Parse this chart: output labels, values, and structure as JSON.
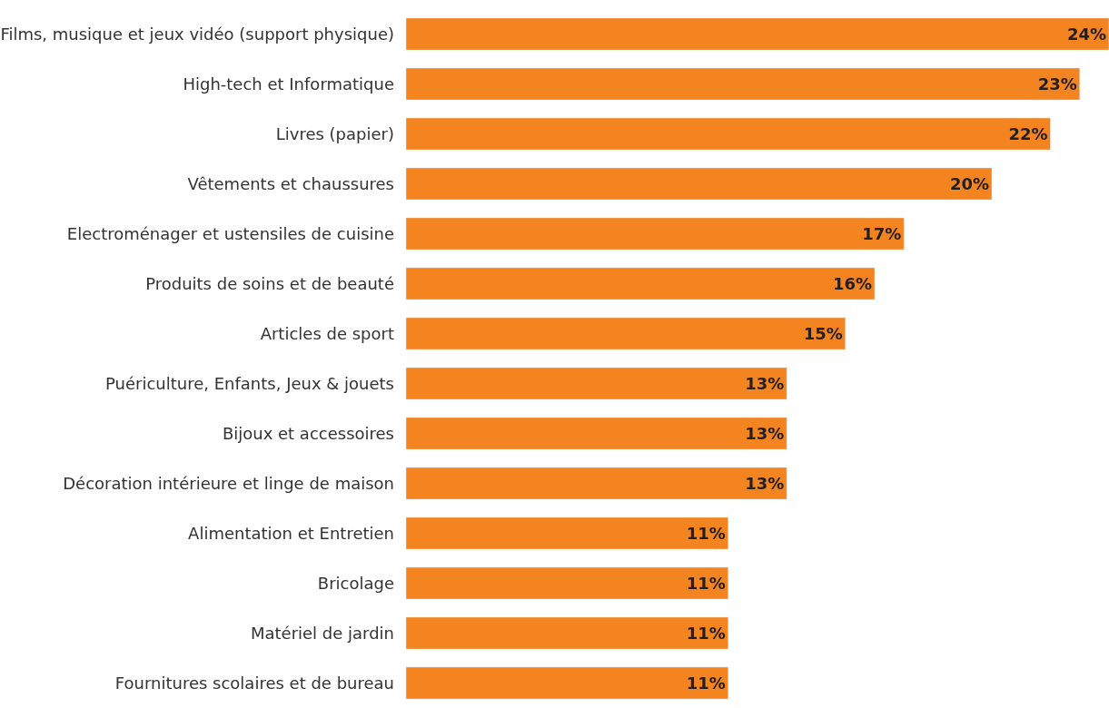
{
  "chart_data": {
    "type": "bar",
    "orientation": "horizontal",
    "categories": [
      "Films, musique et jeux vidéo (support physique)",
      "High-tech et Informatique",
      "Livres (papier)",
      "Vêtements et chaussures",
      "Electroménager et ustensiles de cuisine",
      "Produits de soins et de beauté",
      "Articles de sport",
      "Puériculture, Enfants, Jeux & jouets",
      "Bijoux et accessoires",
      "Décoration intérieure et linge de maison",
      "Alimentation et Entretien",
      "Bricolage",
      "Matériel de jardin",
      "Fournitures scolaires et de bureau"
    ],
    "values": [
      24,
      23,
      22,
      20,
      17,
      16,
      15,
      13,
      13,
      13,
      11,
      11,
      11,
      11
    ],
    "value_labels": [
      "24%",
      "23%",
      "22%",
      "20%",
      "17%",
      "16%",
      "15%",
      "13%",
      "13%",
      "13%",
      "11%",
      "11%",
      "11%",
      "11%"
    ],
    "color": "#f48420",
    "tick_labels": "y",
    "legend": false
  }
}
